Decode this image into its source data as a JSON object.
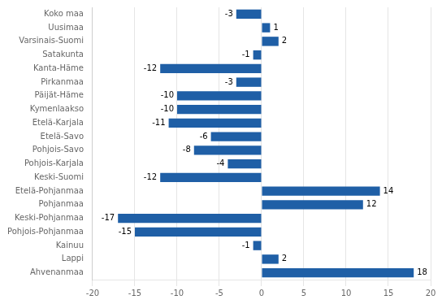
{
  "chart_data": {
    "type": "bar",
    "orientation": "horizontal",
    "categories": [
      "Koko maa",
      "Uusimaa",
      "Varsinais-Suomi",
      "Satakunta",
      "Kanta-Häme",
      "Pirkanmaa",
      "Päijät-Häme",
      "Kymenlaakso",
      "Etelä-Karjala",
      "Etelä-Savo",
      "Pohjois-Savo",
      "Pohjois-Karjala",
      "Keski-Suomi",
      "Etelä-Pohjanmaa",
      "Pohjanmaa",
      "Keski-Pohjanmaa",
      "Pohjois-Pohjanmaa",
      "Kainuu",
      "Lappi",
      "Ahvenanmaa"
    ],
    "values": [
      -3,
      1,
      2,
      -1,
      -12,
      -3,
      -10,
      -10,
      -11,
      -6,
      -8,
      -4,
      -12,
      14,
      12,
      -17,
      -15,
      -1,
      2,
      18
    ],
    "color": "#1f5fa6",
    "xlim": [
      -20,
      20
    ],
    "xticks": [
      -20,
      -15,
      -10,
      -5,
      0,
      5,
      10,
      15,
      20
    ],
    "grid": true,
    "data_labels": true
  }
}
